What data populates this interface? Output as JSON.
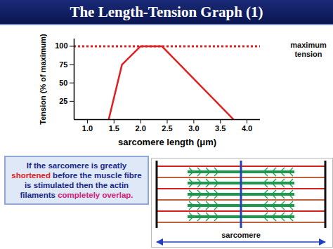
{
  "chart_data": {
    "type": "line",
    "title": "The Length-Tension Graph (1)",
    "x": [
      1.4,
      1.65,
      2.0,
      2.4,
      3.75
    ],
    "values": [
      0,
      75,
      100,
      100,
      0
    ],
    "color": "#e02020",
    "xlabel": "sarcomere length (μm)",
    "ylabel": "Tension (% of maximum)",
    "xlim": [
      0.75,
      4.25
    ],
    "xticks": [
      {
        "value": 1,
        "label": "1.0"
      },
      1.5,
      {
        "value": 2,
        "label": "2.0"
      },
      2.5,
      {
        "value": 3,
        "label": "3.0"
      },
      3.5,
      {
        "value": 4,
        "label": "4.0"
      }
    ],
    "ylim": [
      0,
      110
    ],
    "yticks": [
      25,
      50,
      75,
      100
    ],
    "reference_line": {
      "value": 100,
      "label": "maximum tension",
      "line_style": "dotted",
      "color": "#e02020"
    }
  },
  "text_box": {
    "runs": [
      {
        "text": "If the sarcomere is greatly ",
        "color": "#1a2a8a"
      },
      {
        "text": "shortened",
        "color": "#e02020"
      },
      {
        "text": " before the muscle fibre is stimulated then the actin filaments ",
        "color": "#1a2a8a"
      },
      {
        "text": "completely overlap.",
        "color": "#d0207a"
      }
    ]
  },
  "diagram": {
    "label": "sarcomere"
  }
}
